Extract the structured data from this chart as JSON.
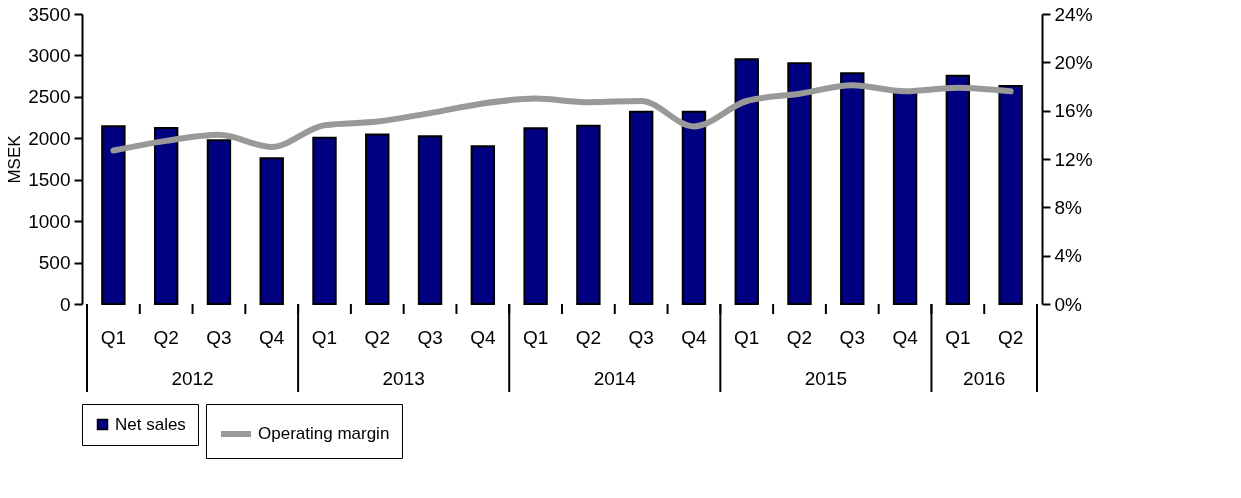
{
  "chart_data": {
    "type": "bar",
    "categories": [
      "Q1",
      "Q2",
      "Q3",
      "Q4",
      "Q1",
      "Q2",
      "Q3",
      "Q4",
      "Q1",
      "Q2",
      "Q3",
      "Q4",
      "Q1",
      "Q2",
      "Q3",
      "Q4",
      "Q1",
      "Q2"
    ],
    "series": [
      {
        "name": "Net sales",
        "color": "#000080",
        "values": [
          2145,
          2125,
          1975,
          1760,
          2005,
          2045,
          2025,
          1905,
          2120,
          2150,
          2320,
          2320,
          2955,
          2905,
          2785,
          2580,
          2755,
          2630
        ]
      },
      {
        "name": "Operating margin",
        "type": "line",
        "axis": "y2",
        "color": "#999999",
        "values": [
          12.7,
          13.5,
          14.0,
          13.0,
          14.8,
          15.1,
          15.8,
          16.6,
          17.0,
          16.7,
          16.8,
          14.7,
          16.8,
          17.4,
          18.1,
          17.6,
          17.9,
          17.6
        ]
      }
    ],
    "annotations": [
      "2012",
      "2013",
      "2014",
      "2015",
      "2016"
    ],
    "ylabel": "MSEK",
    "ylim": [
      0,
      3500
    ],
    "yticks": [
      0,
      500,
      1000,
      1500,
      2000,
      2500,
      3000,
      3500
    ],
    "y2lim": [
      0,
      24
    ],
    "y2ticks": [
      {
        "value": 0,
        "label": "0%"
      },
      {
        "value": 4,
        "label": "4%"
      },
      {
        "value": 8,
        "label": "8%"
      },
      {
        "value": 12,
        "label": "12%"
      },
      {
        "value": 16,
        "label": "16%"
      },
      {
        "value": 20,
        "label": "20%"
      },
      {
        "value": 24,
        "label": "24%"
      }
    ],
    "grid": false,
    "legend": "bottom"
  }
}
